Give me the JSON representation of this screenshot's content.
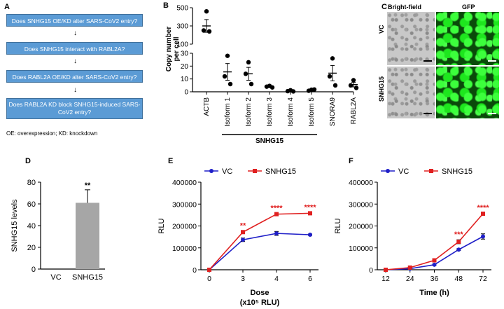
{
  "panels": {
    "A": {
      "letter": "A",
      "flow": [
        "Does SNHG15 OE/KD alter SARS-CoV2 entry?",
        "Does SNHG15 interact with RABL2A?",
        "Does RABL2A OE/KD alter SARS-CoV2 entry?",
        "Does RABL2A KD block SNHG15-induced SARS-CoV2 entry?"
      ],
      "footnote": "OE: overexpression; KD: knockdown"
    },
    "B": {
      "letter": "B"
    },
    "C": {
      "letter": "C",
      "col_labels": [
        "Bright-field",
        "GFP"
      ],
      "row_labels": [
        "VC",
        "SNHG15"
      ]
    },
    "D": {
      "letter": "D"
    },
    "E": {
      "letter": "E"
    },
    "F": {
      "letter": "F"
    }
  },
  "colors": {
    "vc": "#1f1fc8",
    "snhg15": "#e02020",
    "bar": "#a6a6a6",
    "flow_box": "#5b9bd5"
  },
  "chart_data": [
    {
      "id": "B",
      "type": "scatter",
      "ylabel": "Copy number per cell",
      "categories": [
        "ACTB",
        "Isoform 1",
        "Isoform 2",
        "Isoform 3",
        "Isoform 4",
        "Isoform 5",
        "SNORA9",
        "RABL2A"
      ],
      "group_label": "SNHG15",
      "y_ticks": [
        "0",
        "10",
        "20",
        "30",
        "100",
        "300",
        "500"
      ],
      "broken_axis": true,
      "points": [
        [
          460,
          250,
          240
        ],
        [
          28,
          12,
          6
        ],
        [
          23,
          14,
          6
        ],
        [
          4.6,
          4.0,
          3.4
        ],
        [
          1.2,
          0.5,
          0.3
        ],
        [
          1.6,
          0.8,
          1.8
        ],
        [
          26,
          12,
          5
        ],
        [
          9,
          5,
          3
        ]
      ],
      "means": [
        300,
        15.5,
        14,
        4,
        0.6,
        1.4,
        14.5,
        5.6
      ],
      "sem": [
        70,
        6.5,
        5,
        0.4,
        0.3,
        0.5,
        6,
        1.8
      ]
    },
    {
      "id": "D",
      "type": "bar",
      "ylabel": "SNHG15 levels",
      "categories": [
        "VC",
        "SNHG15"
      ],
      "values": [
        0,
        61
      ],
      "errors": [
        0,
        12
      ],
      "ylim": [
        0,
        80
      ],
      "y_ticks": [
        "0",
        "20",
        "40",
        "60",
        "80"
      ],
      "annotations": [
        "",
        "**"
      ]
    },
    {
      "id": "E",
      "type": "line",
      "ylabel": "RLU",
      "xlabel": "Dose",
      "xlabel2": "(x10⁵ RLU)",
      "x": [
        0,
        3,
        4,
        6
      ],
      "x_ticks": [
        "0",
        "3",
        "4",
        "6"
      ],
      "ylim": [
        0,
        400000
      ],
      "y_ticks": [
        "0",
        "100000",
        "200000",
        "300000",
        "400000"
      ],
      "series": [
        {
          "name": "VC",
          "values": [
            0,
            137000,
            166000,
            160000
          ],
          "errors": [
            0,
            8000,
            9000,
            3000
          ]
        },
        {
          "name": "SNHG15",
          "values": [
            0,
            172000,
            254000,
            258000
          ],
          "errors": [
            0,
            5000,
            4000,
            3000
          ]
        }
      ],
      "annotations": [
        "",
        "**",
        "****",
        "****"
      ]
    },
    {
      "id": "F",
      "type": "line",
      "ylabel": "RLU",
      "xlabel": "Time (h)",
      "x": [
        12,
        24,
        36,
        48,
        72
      ],
      "x_ticks": [
        "12",
        "24",
        "36",
        "48",
        "72"
      ],
      "ylim": [
        0,
        400000
      ],
      "y_ticks": [
        "0",
        "100000",
        "200000",
        "300000",
        "400000"
      ],
      "series": [
        {
          "name": "VC",
          "values": [
            0,
            5000,
            23000,
            92000,
            152000
          ],
          "errors": [
            0,
            1500,
            3000,
            4000,
            12000
          ]
        },
        {
          "name": "SNHG15",
          "values": [
            0,
            10000,
            43000,
            128000,
            256000
          ],
          "errors": [
            0,
            1500,
            4000,
            9000,
            4000
          ]
        }
      ],
      "annotations": [
        "",
        "",
        "",
        "***",
        "****"
      ]
    }
  ]
}
